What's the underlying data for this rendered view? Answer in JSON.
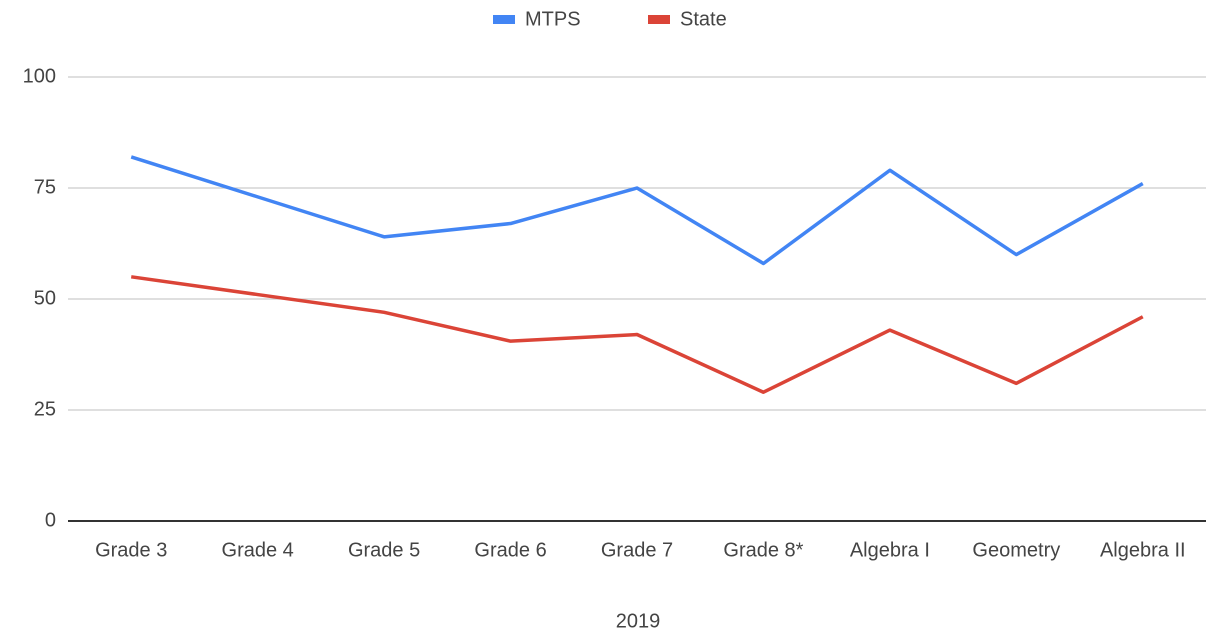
{
  "chart_data": {
    "type": "line",
    "x_label": "2019",
    "categories": [
      "Grade 3",
      "Grade 4",
      "Grade 5",
      "Grade 6",
      "Grade 7",
      "Grade 8*",
      "Algebra I",
      "Geometry",
      "Algebra II"
    ],
    "series": [
      {
        "name": "MTPS",
        "color": "#4285f4",
        "values": [
          82,
          73,
          64,
          67,
          75,
          58,
          79,
          60,
          76
        ]
      },
      {
        "name": "State",
        "color": "#db4437",
        "values": [
          55,
          51,
          47,
          40.5,
          42,
          29,
          43,
          31,
          46
        ]
      }
    ],
    "ylim": [
      0,
      100
    ],
    "yticks": [
      0,
      25,
      50,
      75,
      100
    ],
    "grid": true,
    "legend": "top"
  }
}
